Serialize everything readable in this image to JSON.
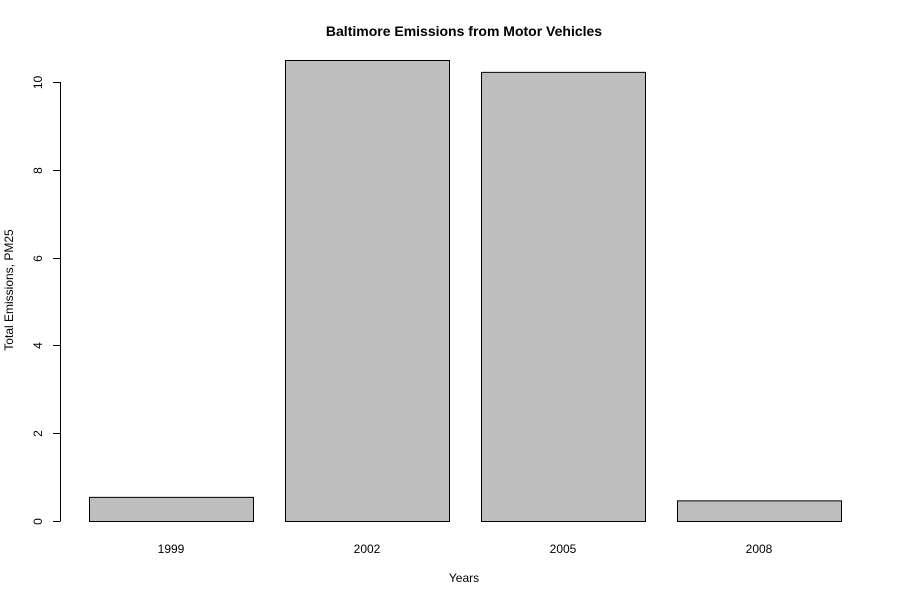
{
  "chart_data": {
    "type": "bar",
    "title": "Baltimore Emissions from Motor Vehicles",
    "xlabel": "Years",
    "ylabel": "Total Emissions, PM25",
    "categories": [
      "1999",
      "2002",
      "2005",
      "2008"
    ],
    "values": [
      0.55,
      10.5,
      10.23,
      0.47
    ],
    "ylim": [
      0,
      10.5
    ],
    "y_ticks": [
      0,
      2,
      4,
      6,
      8,
      10
    ],
    "grid": false,
    "legend": "none",
    "bar_fill": "#bebebe",
    "bar_stroke": "#000000"
  }
}
